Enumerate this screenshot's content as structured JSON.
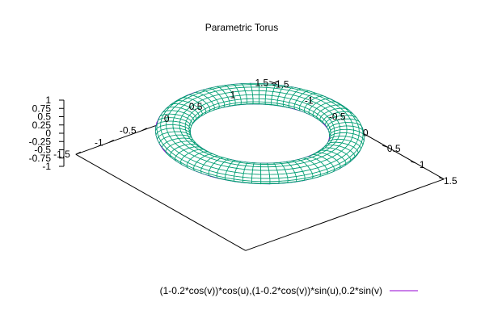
{
  "chart_data": {
    "type": "surface3d",
    "title": "Parametric Torus",
    "parametric": true,
    "surface": {
      "x_expr": "(1-0.2*cos(v))*cos(u)",
      "y_expr": "(1-0.2*cos(v))*sin(u)",
      "z_expr": "0.2*sin(v)",
      "R": 1,
      "r": 0.2,
      "u_range": [
        0,
        6.2832
      ],
      "v_range": [
        0,
        6.2832
      ],
      "u_samples": 72,
      "v_samples": 16
    },
    "xlim": [
      -1.5,
      1.5
    ],
    "ylim": [
      -1.5,
      1.5
    ],
    "zlim": [
      -1,
      1
    ],
    "view": {
      "rot_x_deg": 60,
      "rot_z_deg": 30
    },
    "x_ticks": [
      "-1.5",
      "-1",
      "-0.5",
      "0",
      "0.5",
      "1",
      "1.5"
    ],
    "y_ticks": [
      "-1.5",
      "-1",
      "-0.5",
      "0",
      "0.5",
      "1",
      "1.5"
    ],
    "z_ticks": [
      "-1",
      "-0.75",
      "-0.5",
      "-0.25",
      "0",
      "0.25",
      "0.5",
      "0.75",
      "1"
    ],
    "legend": {
      "label": "(1-0.2*cos(v))*cos(u),(1-0.2*cos(v))*sin(u),0.2*sin(v)",
      "placement": "bottom-right"
    },
    "colors": {
      "surface_top": "#009e73",
      "surface_bottom": "#9400d3",
      "axes": "#000000",
      "background": "#ffffff"
    },
    "grid": false
  }
}
